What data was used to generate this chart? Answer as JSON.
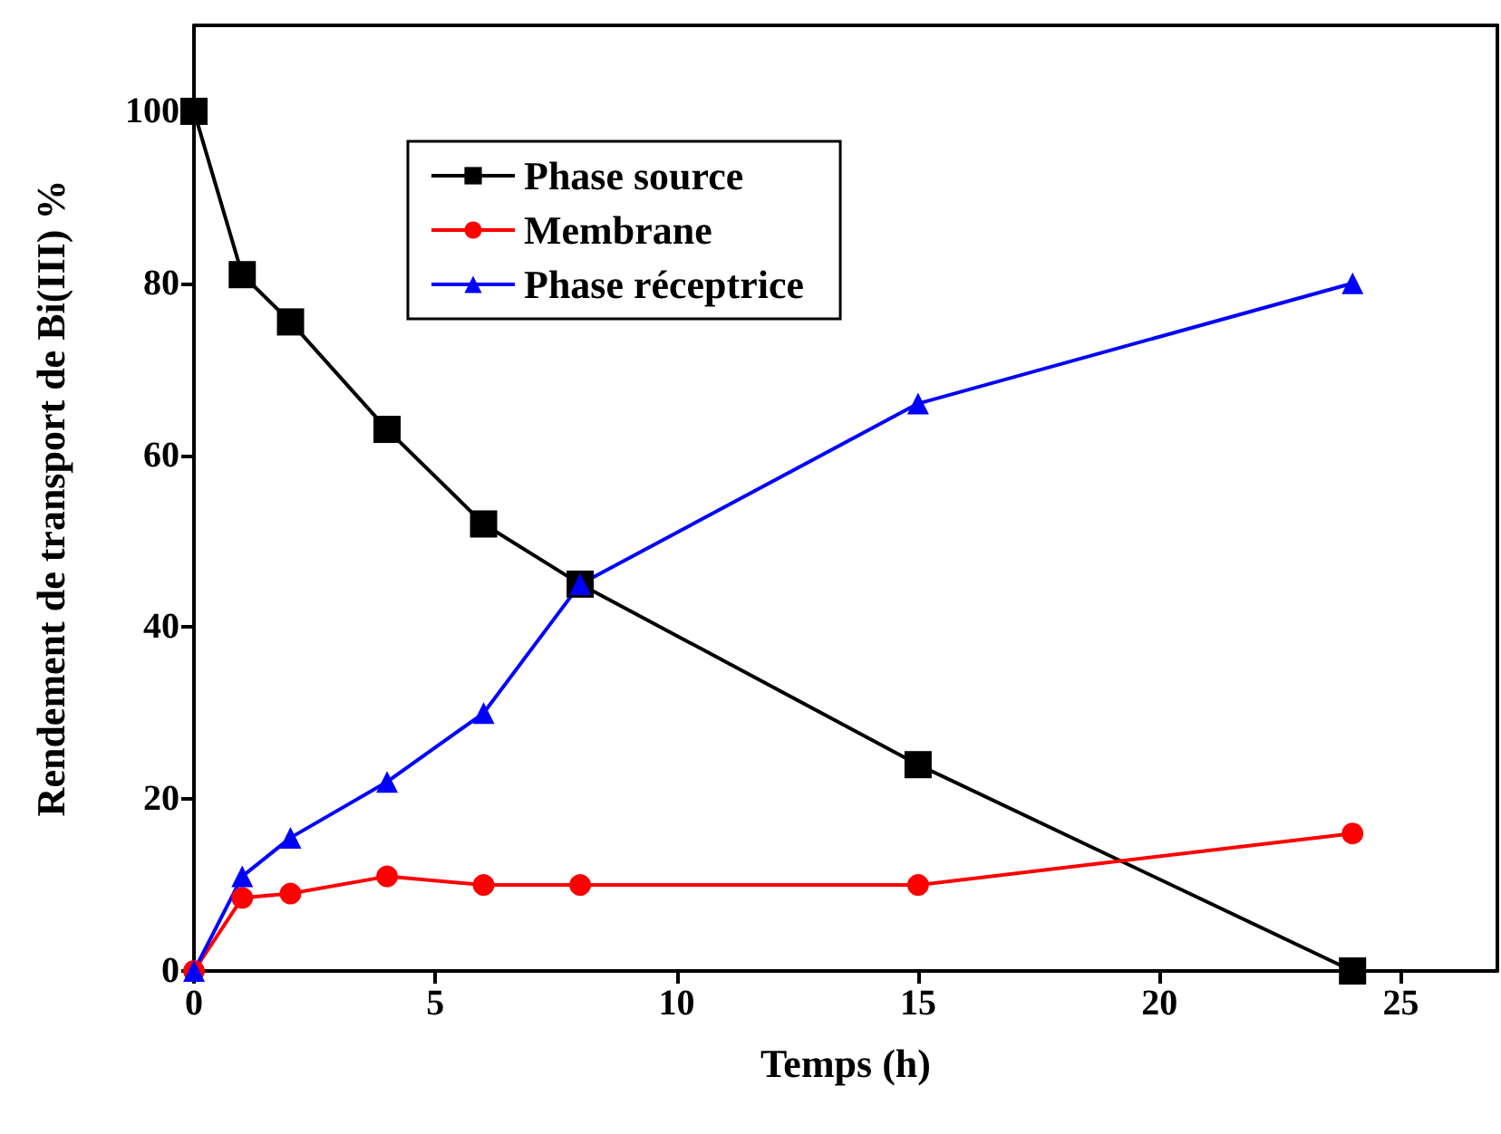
{
  "chart_data": {
    "type": "line",
    "xlabel": "Temps (h)",
    "ylabel": "Rendement de transport de Bi(III) %",
    "x": [
      0,
      1,
      2,
      4,
      6,
      8,
      15,
      24
    ],
    "series": [
      {
        "name": "Phase source",
        "color": "#000000",
        "marker": "square",
        "values": [
          100,
          81,
          75.5,
          63,
          52,
          45,
          24,
          0
        ]
      },
      {
        "name": "Membrane",
        "color": "#ff0000",
        "marker": "circle",
        "values": [
          0,
          8.5,
          9,
          11,
          10,
          10,
          10,
          16
        ]
      },
      {
        "name": "Phase réceptrice",
        "color": "#0000ff",
        "marker": "triangle",
        "values": [
          0,
          11,
          15.5,
          22,
          30,
          45,
          66,
          80
        ]
      }
    ],
    "xlim": [
      0,
      27
    ],
    "xticks": [
      0,
      5,
      10,
      15,
      20,
      25
    ],
    "ylim": [
      0,
      110
    ],
    "yticks": [
      0,
      20,
      40,
      60,
      80,
      100
    ],
    "grid": false,
    "legend": "top left",
    "line_style": "solid"
  }
}
